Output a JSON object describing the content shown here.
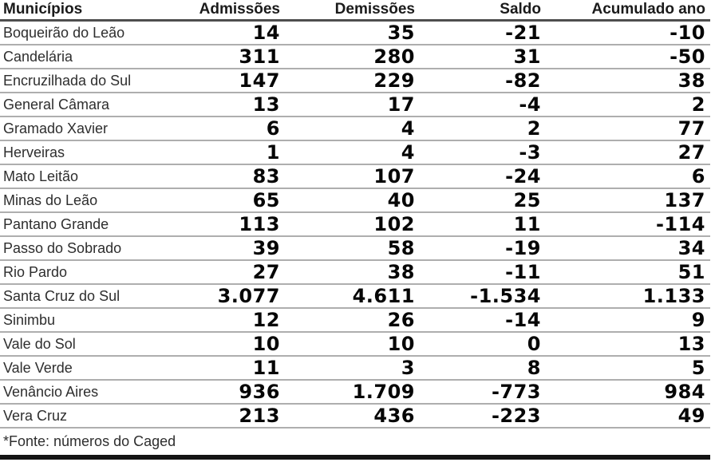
{
  "chart_data": {
    "type": "table",
    "title": "",
    "columns": [
      "Municípios",
      "Admissões",
      "Demissões",
      "Saldo",
      "Acumulado ano"
    ],
    "rows": [
      {
        "municipio": "Boqueirão do Leão",
        "admissoes": "14",
        "demissoes": "35",
        "saldo": "-21",
        "acumulado_ano": "-10"
      },
      {
        "municipio": "Candelária",
        "admissoes": "311",
        "demissoes": "280",
        "saldo": "31",
        "acumulado_ano": "-50"
      },
      {
        "municipio": "Encruzilhada do Sul",
        "admissoes": "147",
        "demissoes": "229",
        "saldo": "-82",
        "acumulado_ano": "38"
      },
      {
        "municipio": "General Câmara",
        "admissoes": "13",
        "demissoes": "17",
        "saldo": "-4",
        "acumulado_ano": "2"
      },
      {
        "municipio": "Gramado Xavier",
        "admissoes": "6",
        "demissoes": "4",
        "saldo": "2",
        "acumulado_ano": "77"
      },
      {
        "municipio": "Herveiras",
        "admissoes": "1",
        "demissoes": "4",
        "saldo": "-3",
        "acumulado_ano": "27"
      },
      {
        "municipio": "Mato Leitão",
        "admissoes": "83",
        "demissoes": "107",
        "saldo": "-24",
        "acumulado_ano": "6"
      },
      {
        "municipio": "Minas do Leão",
        "admissoes": "65",
        "demissoes": "40",
        "saldo": "25",
        "acumulado_ano": "137"
      },
      {
        "municipio": "Pantano Grande",
        "admissoes": "113",
        "demissoes": "102",
        "saldo": "11",
        "acumulado_ano": "-114"
      },
      {
        "municipio": "Passo do Sobrado",
        "admissoes": "39",
        "demissoes": "58",
        "saldo": "-19",
        "acumulado_ano": "34"
      },
      {
        "municipio": "Rio Pardo",
        "admissoes": "27",
        "demissoes": "38",
        "saldo": "-11",
        "acumulado_ano": "51"
      },
      {
        "municipio": "Santa Cruz do Sul",
        "admissoes": "3.077",
        "demissoes": "4.611",
        "saldo": "-1.534",
        "acumulado_ano": "1.133"
      },
      {
        "municipio": "Sinimbu",
        "admissoes": "12",
        "demissoes": "26",
        "saldo": "-14",
        "acumulado_ano": "9"
      },
      {
        "municipio": "Vale do Sol",
        "admissoes": "10",
        "demissoes": "10",
        "saldo": "0",
        "acumulado_ano": "13"
      },
      {
        "municipio": "Vale Verde",
        "admissoes": "11",
        "demissoes": "3",
        "saldo": "8",
        "acumulado_ano": "5"
      },
      {
        "municipio": "Venâncio Aires",
        "admissoes": "936",
        "demissoes": "1.709",
        "saldo": "-773",
        "acumulado_ano": "984"
      },
      {
        "municipio": "Vera Cruz",
        "admissoes": "213",
        "demissoes": "436",
        "saldo": "-223",
        "acumulado_ano": "49"
      }
    ],
    "source_note": "*Fonte: números do Caged",
    "style": {
      "header_rule_color": "#4e4e4e",
      "row_rule_color": "#aeaeae",
      "bottom_bar_color": "#141414"
    }
  }
}
